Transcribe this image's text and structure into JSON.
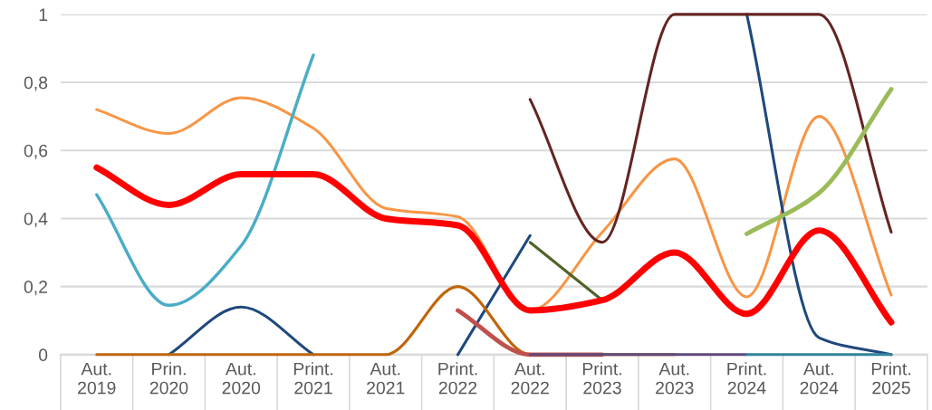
{
  "chart_data": {
    "type": "line",
    "categories": [
      "Aut.\n2019",
      "Prin.\n2020",
      "Aut.\n2020",
      "Print.\n2021",
      "Aut.\n2021",
      "Print.\n2022",
      "Aut.\n2022",
      "Print.\n2023",
      "Aut.\n2023",
      "Print.\n2024",
      "Aut.\n2024",
      "Print.\n2025"
    ],
    "series": [
      {
        "color": "#f79646",
        "values": [
          0.72,
          0.65,
          0.755,
          0.665,
          0.43,
          0.405,
          0.13,
          0.36,
          0.575,
          0.17,
          0.7,
          0.175
        ]
      },
      {
        "color": "#4bacc6",
        "values": [
          0.47,
          0.145,
          0.32,
          0.88,
          null,
          null,
          null,
          null,
          null,
          null,
          null,
          null
        ]
      },
      {
        "color": "#1f497d",
        "values": [
          null,
          0,
          0.14,
          0,
          null,
          0,
          0.35,
          null,
          null,
          1.0,
          0.05,
          0
        ]
      },
      {
        "color": "#632523",
        "values": [
          null,
          null,
          null,
          null,
          null,
          null,
          0.75,
          0.33,
          1.0,
          1.0,
          1.0,
          0.36
        ]
      },
      {
        "color": "#c0650a",
        "values": [
          0,
          0,
          0,
          0,
          0,
          0.2,
          0,
          0,
          0,
          null,
          null,
          null
        ]
      },
      {
        "color": "#c0504d",
        "values": [
          null,
          null,
          null,
          null,
          null,
          0.13,
          0,
          0,
          null,
          null,
          null,
          null
        ]
      },
      {
        "color": "#4f6228",
        "values": [
          null,
          null,
          null,
          null,
          null,
          null,
          0.33,
          0.16,
          null,
          null,
          null,
          null
        ]
      },
      {
        "color": "#604a7b",
        "values": [
          null,
          null,
          null,
          null,
          null,
          null,
          0,
          0,
          0,
          0,
          null,
          null
        ]
      },
      {
        "color": "#31859c",
        "values": [
          null,
          null,
          null,
          null,
          null,
          null,
          null,
          null,
          null,
          0,
          0,
          0
        ]
      },
      {
        "color": "#9bbb59",
        "values": [
          null,
          null,
          null,
          null,
          null,
          null,
          null,
          null,
          null,
          0.355,
          0.475,
          0.78
        ]
      },
      {
        "color": "#ff0000",
        "values": [
          0.55,
          0.44,
          0.53,
          0.53,
          0.4,
          0.38,
          0.13,
          0.16,
          0.3,
          0.12,
          0.365,
          0.095
        ]
      }
    ],
    "ylim": [
      0,
      1
    ],
    "yticks": [
      {
        "value": 0,
        "label": "0"
      },
      {
        "value": 0.2,
        "label": "0,2"
      },
      {
        "value": 0.4,
        "label": "0,4"
      },
      {
        "value": 0.6,
        "label": "0,6"
      },
      {
        "value": 0.8,
        "label": "0,8"
      },
      {
        "value": 1,
        "label": "1"
      }
    ],
    "grid": "y",
    "legend": false
  }
}
